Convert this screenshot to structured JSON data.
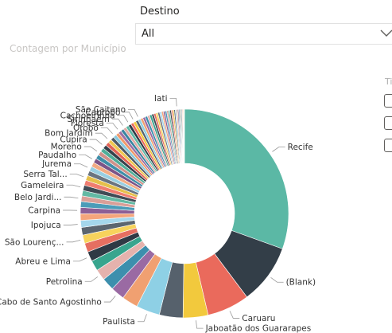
{
  "slicer": {
    "label": "Destino",
    "value": "All",
    "icon": "chevron-down-icon"
  },
  "chart_title": "Contagem por Município",
  "right_panel": {
    "partial_text": "Ti"
  },
  "chart_data": {
    "type": "pie",
    "donut": true,
    "title": "Contagem por Município",
    "legend": "none",
    "slices": [
      {
        "label": "Recife",
        "value": 28.3,
        "color": "#5bb8a5"
      },
      {
        "label": "(Blank)",
        "value": 8.6,
        "color": "#333e48"
      },
      {
        "label": "Caruaru",
        "value": 6.1,
        "color": "#ea6a5c"
      },
      {
        "label": "Jaboatão dos Guararapes",
        "value": 3.6,
        "color": "#f2c93d"
      },
      {
        "label": "",
        "value": 3.4,
        "color": "#56616c"
      },
      {
        "label": "Paulista",
        "value": 3.4,
        "color": "#8ed0e5"
      },
      {
        "label": "",
        "value": 2.3,
        "color": "#f0a071"
      },
      {
        "label": "Cabo de Santo Agostinho",
        "value": 2.0,
        "color": "#9a6aa3"
      },
      {
        "label": "",
        "value": 1.8,
        "color": "#3d8fad"
      },
      {
        "label": "Petrolina",
        "value": 1.6,
        "color": "#e5b2ad"
      },
      {
        "label": "",
        "value": 1.5,
        "color": "#38a58e"
      },
      {
        "label": "Abreu e Lima",
        "value": 1.4,
        "color": "#2f3a45"
      },
      {
        "label": "",
        "value": 1.3,
        "color": "#e66f61"
      },
      {
        "label": "São Lourenç...",
        "value": 1.2,
        "color": "#f7d35c"
      },
      {
        "label": "",
        "value": 1.1,
        "color": "#5c6670"
      },
      {
        "label": "Ipojuca",
        "value": 1.0,
        "color": "#a5d7ec"
      },
      {
        "label": "",
        "value": 0.95,
        "color": "#f4a57c"
      },
      {
        "label": "Carpina",
        "value": 0.9,
        "color": "#8c5f96"
      },
      {
        "label": "",
        "value": 0.85,
        "color": "#4b9cb8"
      },
      {
        "label": "Belo Jardi...",
        "value": 0.8,
        "color": "#d99f98"
      },
      {
        "label": "",
        "value": 0.78,
        "color": "#63b9a4"
      },
      {
        "label": "Gameleira",
        "value": 0.76,
        "color": "#404b55"
      },
      {
        "label": "",
        "value": 0.74,
        "color": "#ef7d70"
      },
      {
        "label": "Serra Tal...",
        "value": 0.72,
        "color": "#e5c04b"
      },
      {
        "label": "",
        "value": 0.7,
        "color": "#6a7480"
      },
      {
        "label": "Jurema",
        "value": 0.68,
        "color": "#99cfe2"
      },
      {
        "label": "",
        "value": 0.66,
        "color": "#f2ab84"
      },
      {
        "label": "Paudalho",
        "value": 0.64,
        "color": "#7d5487"
      },
      {
        "label": "",
        "value": 0.62,
        "color": "#3f8ea8"
      },
      {
        "label": "Moreno",
        "value": 0.6,
        "color": "#cf918a"
      },
      {
        "label": "",
        "value": 0.58,
        "color": "#4fae99"
      },
      {
        "label": "Cupira",
        "value": 0.56,
        "color": "#36414b"
      },
      {
        "label": "",
        "value": 0.54,
        "color": "#e36357"
      },
      {
        "label": "Bom Jardim",
        "value": 0.52,
        "color": "#efc750"
      },
      {
        "label": "",
        "value": 0.5,
        "color": "#505b66"
      },
      {
        "label": "Orobó",
        "value": 0.48,
        "color": "#87c8de"
      },
      {
        "label": "",
        "value": 0.46,
        "color": "#f0996a"
      },
      {
        "label": "Floresta",
        "value": 0.45,
        "color": "#9c6fa5"
      },
      {
        "label": "",
        "value": 0.44,
        "color": "#3885a0"
      },
      {
        "label": "Sirinhaém",
        "value": 0.43,
        "color": "#e0aaa4"
      },
      {
        "label": "",
        "value": 0.42,
        "color": "#5bb8a5"
      },
      {
        "label": "Cachoeirinha",
        "value": 0.41,
        "color": "#2f3a45"
      },
      {
        "label": "",
        "value": 0.4,
        "color": "#ea6a5c"
      },
      {
        "label": "Cabrobó",
        "value": 0.39,
        "color": "#f2c93d"
      },
      {
        "label": "",
        "value": 0.38,
        "color": "#56616c"
      },
      {
        "label": "São Caitano",
        "value": 0.37,
        "color": "#8ed0e5"
      },
      {
        "label": "",
        "value": 0.36,
        "color": "#f0a071"
      },
      {
        "label": "",
        "value": 0.35,
        "color": "#9a6aa3"
      },
      {
        "label": "",
        "value": 0.34,
        "color": "#3d8fad"
      },
      {
        "label": "",
        "value": 0.33,
        "color": "#e5b2ad"
      },
      {
        "label": "",
        "value": 0.32,
        "color": "#38a58e"
      },
      {
        "label": "",
        "value": 0.31,
        "color": "#404b55"
      },
      {
        "label": "",
        "value": 0.3,
        "color": "#e66f61"
      },
      {
        "label": "",
        "value": 0.29,
        "color": "#f7d35c"
      },
      {
        "label": "",
        "value": 0.28,
        "color": "#6a7480"
      },
      {
        "label": "",
        "value": 0.27,
        "color": "#a5d7ec"
      },
      {
        "label": "",
        "value": 0.26,
        "color": "#f4a57c"
      },
      {
        "label": "",
        "value": 0.25,
        "color": "#8c5f96"
      },
      {
        "label": "",
        "value": 0.24,
        "color": "#4b9cb8"
      },
      {
        "label": "",
        "value": 0.23,
        "color": "#d99f98"
      },
      {
        "label": "",
        "value": 0.22,
        "color": "#63b9a4"
      },
      {
        "label": "",
        "value": 0.21,
        "color": "#36414b"
      },
      {
        "label": "",
        "value": 0.2,
        "color": "#ef7d70"
      },
      {
        "label": "",
        "value": 0.19,
        "color": "#e5c04b"
      },
      {
        "label": "",
        "value": 0.18,
        "color": "#505b66"
      },
      {
        "label": "",
        "value": 0.17,
        "color": "#99cfe2"
      },
      {
        "label": "Iati",
        "value": 0.16,
        "color": "#f2ab84"
      },
      {
        "label": "",
        "value": 0.15,
        "color": "#7d5487"
      },
      {
        "label": "",
        "value": 0.14,
        "color": "#3f8ea8"
      },
      {
        "label": "",
        "value": 0.13,
        "color": "#cf918a"
      },
      {
        "label": "",
        "value": 0.12,
        "color": "#4fae99"
      },
      {
        "label": "",
        "value": 0.11,
        "color": "#333e48"
      },
      {
        "label": "",
        "value": 0.1,
        "color": "#e36357"
      },
      {
        "label": "",
        "value": 0.09,
        "color": "#efc750"
      },
      {
        "label": "",
        "value": 0.08,
        "color": "#87c8de"
      },
      {
        "label": "",
        "value": 0.07,
        "color": "#f0996a"
      }
    ]
  }
}
